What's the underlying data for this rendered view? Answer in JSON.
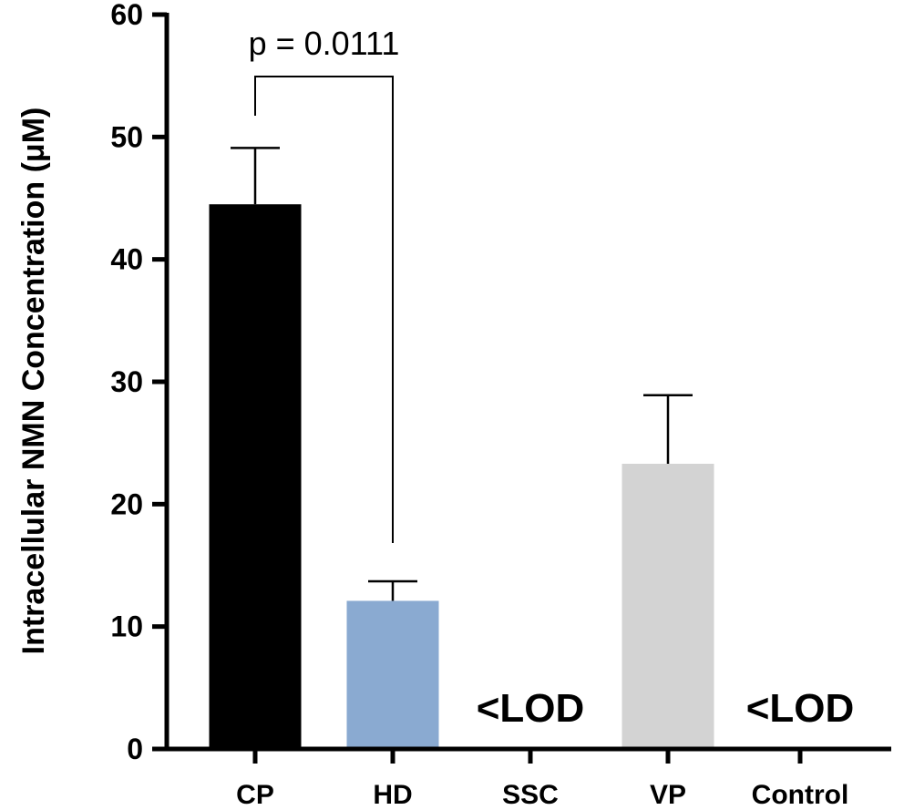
{
  "chart_data": {
    "type": "bar",
    "title": "",
    "xlabel": "",
    "ylabel": "Intracellular NMN Concentration (μM)",
    "ylim": [
      0,
      60
    ],
    "yticks": [
      0,
      10,
      20,
      30,
      40,
      50,
      60
    ],
    "categories": [
      "CP",
      "HD",
      "SSC",
      "VP",
      "Control"
    ],
    "values": [
      44.5,
      12.1,
      null,
      23.3,
      null
    ],
    "error_upper": [
      4.6,
      1.6,
      null,
      5.6,
      null
    ],
    "bar_colors": [
      "#000000",
      "#8aaad1",
      null,
      "#d3d3d3",
      null
    ],
    "below_detection": [
      {
        "category": "SSC",
        "label": "<LOD"
      },
      {
        "category": "Control",
        "label": "<LOD"
      }
    ],
    "annotations": [
      {
        "type": "significance",
        "between": [
          "CP",
          "HD"
        ],
        "label": "p = 0.0111"
      }
    ],
    "grid": false,
    "legend": "none"
  }
}
